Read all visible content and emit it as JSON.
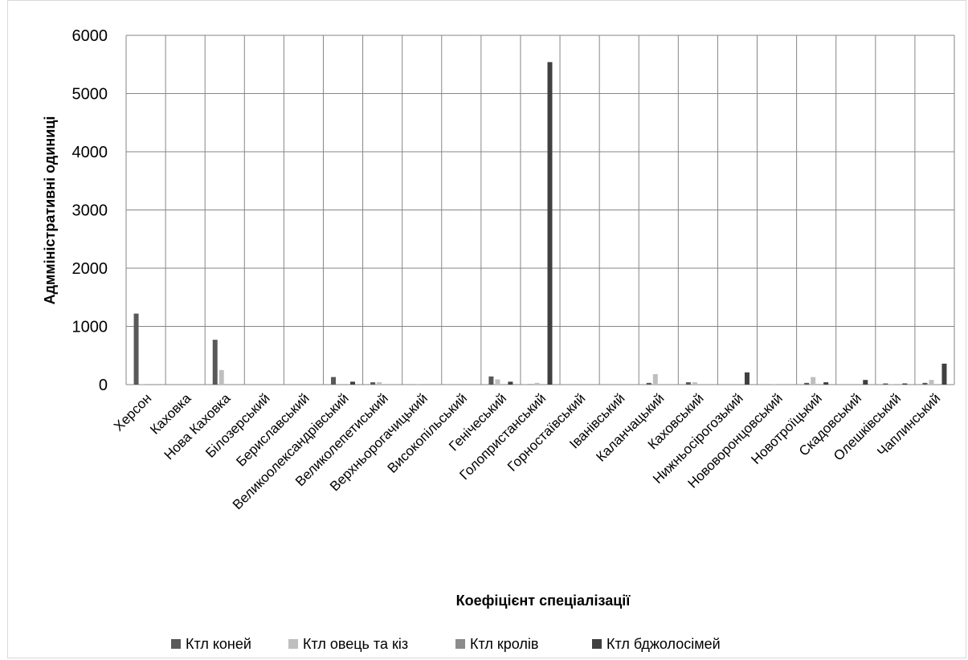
{
  "chart_data": {
    "type": "bar",
    "title": "",
    "xlabel": "Коефіцієнт спеціалізації",
    "ylabel": "Адмміністративні одиниці",
    "ylim": [
      0,
      6000
    ],
    "yticks": [
      "0",
      "1000",
      "2000",
      "3000",
      "4000",
      "5000",
      "6000"
    ],
    "grid": true,
    "legend_position": "bottom",
    "categories": [
      "Херсон",
      "Каховка",
      "Нова Каховка",
      "Білозерський",
      "Бериславський",
      "Великоолександрівський",
      "Великолепетиський",
      "Верхньорогачицький",
      "Високопільський",
      "Генічеський",
      "Голопристанський",
      "Горностаївський",
      "Іванівський",
      "Каланчацький",
      "Каховський",
      "Нижньосірогозький",
      "Нововоронцовський",
      "Новотроїцький",
      "Скадовський",
      "Олешківський",
      "Чаплинський"
    ],
    "series": [
      {
        "name": "Ктл коней",
        "color": "#595959",
        "values": [
          1220,
          0,
          770,
          0,
          0,
          130,
          40,
          0,
          0,
          140,
          5,
          0,
          0,
          30,
          40,
          0,
          0,
          30,
          0,
          20,
          30
        ]
      },
      {
        "name": "Ктл овець та кіз",
        "color": "#bfbfbf",
        "values": [
          10,
          0,
          250,
          0,
          0,
          0,
          40,
          10,
          0,
          90,
          30,
          0,
          0,
          180,
          40,
          0,
          10,
          130,
          0,
          10,
          80
        ]
      },
      {
        "name": "Ктл кролів",
        "color": "#8c8c8c",
        "values": [
          0,
          0,
          0,
          0,
          0,
          0,
          0,
          0,
          0,
          0,
          0,
          0,
          0,
          0,
          0,
          0,
          0,
          0,
          0,
          0,
          0
        ]
      },
      {
        "name": "Ктл бджолосімей",
        "color": "#404040",
        "values": [
          0,
          0,
          0,
          0,
          0,
          50,
          0,
          0,
          0,
          50,
          5540,
          0,
          0,
          0,
          0,
          210,
          0,
          40,
          80,
          20,
          360
        ]
      }
    ]
  }
}
